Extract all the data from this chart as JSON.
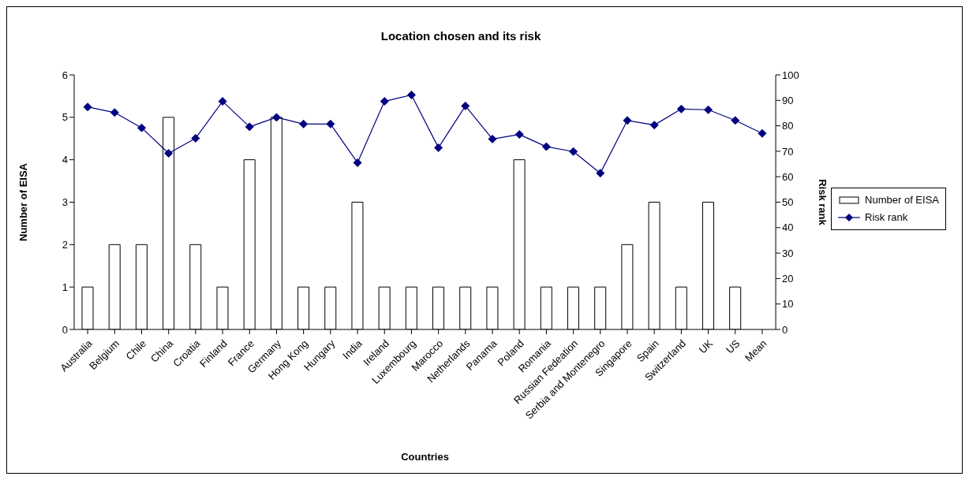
{
  "chart_data": {
    "type": "bar",
    "title": "Location chosen and its risk",
    "xlabel": "Countries",
    "ylabel": "Number of EISA",
    "y2label": "Risk rank",
    "categories": [
      "Australia",
      "Belgium",
      "Chile",
      "China",
      "Croatia",
      "Finland",
      "France",
      "Germany",
      "Hong Kong",
      "Hungary",
      "India",
      "Ireland",
      "Luxembourg",
      "Marocco",
      "Netherlands",
      "Panama",
      "Poland",
      "Romania",
      "Russian Fedeation",
      "Serbia and Montenegro",
      "Singapore",
      "Spain",
      "Switzerland",
      "UK",
      "US",
      "Mean"
    ],
    "series": [
      {
        "name": "Number of EISA",
        "color": "#ffffff",
        "values": [
          1,
          2,
          2,
          5,
          2,
          1,
          4,
          5,
          1,
          1,
          3,
          1,
          1,
          1,
          1,
          1,
          4,
          1,
          1,
          1,
          2,
          3,
          1,
          3,
          1,
          null
        ]
      },
      {
        "name": "Risk rank",
        "type": "line",
        "axis": "y2",
        "color": "#000080",
        "marker": "diamond",
        "values": [
          87.4,
          85.2,
          79.2,
          69.2,
          75.1,
          89.6,
          79.6,
          83.3,
          80.7,
          80.7,
          65.5,
          89.6,
          92.1,
          71.4,
          87.8,
          74.8,
          76.6,
          71.8,
          69.9,
          61.4,
          82.1,
          80.3,
          86.6,
          86.3,
          82.1,
          77.0
        ]
      }
    ],
    "ylim": [
      0,
      6
    ],
    "yticks": [
      0,
      1,
      2,
      3,
      4,
      5,
      6
    ],
    "y2lim": [
      0,
      100
    ],
    "y2ticks": [
      0,
      10,
      20,
      30,
      40,
      50,
      60,
      70,
      80,
      90,
      100
    ],
    "grid": false,
    "legend": "right"
  }
}
